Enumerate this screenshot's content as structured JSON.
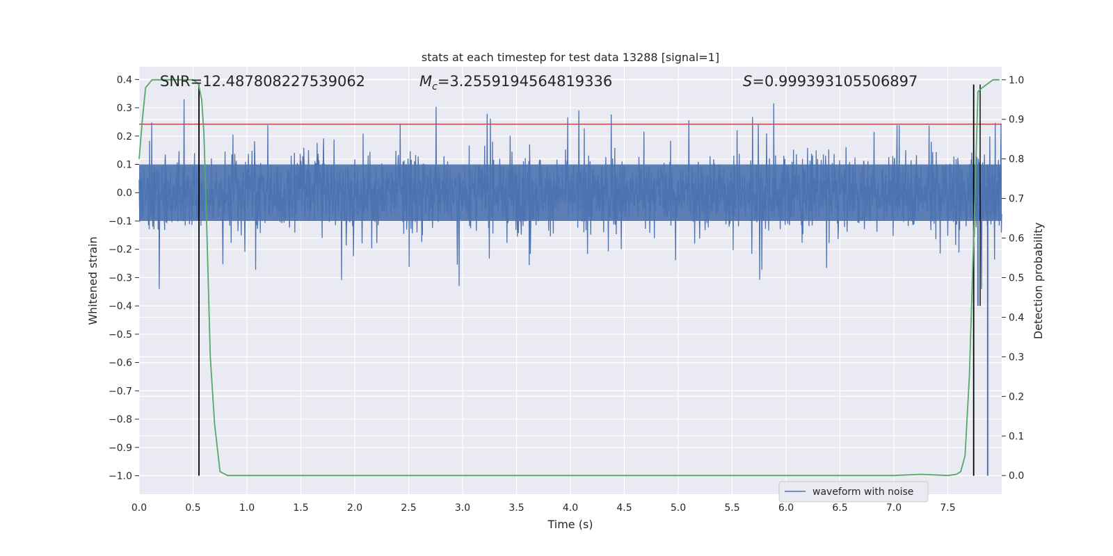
{
  "chart_data": {
    "type": "line",
    "title": "stats at each timestep for test data 13288 [signal=1]",
    "xlabel": "Time (s)",
    "ylabel": "Whitened strain",
    "y2label": "Detection probability",
    "xlim": [
      0.0,
      8.0
    ],
    "ylim": [
      -1.065,
      0.445
    ],
    "y2lim": [
      -0.047,
      1.033
    ],
    "xticks": [
      0.0,
      0.5,
      1.0,
      1.5,
      2.0,
      2.5,
      3.0,
      3.5,
      4.0,
      4.5,
      5.0,
      5.5,
      6.0,
      6.5,
      7.0,
      7.5
    ],
    "yticks": [
      0.4,
      0.3,
      0.2,
      0.1,
      0.0,
      -0.1,
      -0.2,
      -0.3,
      -0.4,
      -0.5,
      -0.6,
      -0.7,
      -0.8,
      -0.9,
      -1.0
    ],
    "y2ticks": [
      1.0,
      0.9,
      0.8,
      0.7,
      0.6,
      0.5,
      0.4,
      0.3,
      0.2,
      0.1,
      0.0
    ],
    "grid": true,
    "legend_position": "lower-right",
    "annotations": {
      "snr": "SNR=12.487808227539062",
      "mc_symbol": "M",
      "mc_subscript": "c",
      "mc_value": "=3.2559194564819336",
      "s_symbol": "S",
      "s_value": "=0.999393105506897"
    },
    "series": [
      {
        "name": "waveform with noise",
        "axis": "left",
        "color": "#4c72b0",
        "kind": "noise",
        "t_range": [
          0.0,
          8.0
        ],
        "typical_range": [
          -0.18,
          0.17
        ],
        "peak_range": [
          -0.34,
          0.33
        ],
        "tail_spikes": [
          {
            "x": 7.78,
            "y": -0.4
          },
          {
            "x": 7.87,
            "y": -1.0
          }
        ]
      },
      {
        "axis": "right",
        "color": "#55a868",
        "x": [
          0.0,
          0.03,
          0.06,
          0.12,
          0.2,
          0.3,
          0.4,
          0.5,
          0.55,
          0.58,
          0.6,
          0.62,
          0.66,
          0.7,
          0.75,
          0.82,
          0.9,
          1.0,
          2.0,
          3.0,
          4.0,
          5.0,
          6.0,
          7.0,
          7.25,
          7.5,
          7.58,
          7.62,
          7.66,
          7.7,
          7.74,
          7.78,
          7.82,
          7.87,
          7.92,
          7.98
        ],
        "y": [
          0.8,
          0.9,
          0.98,
          1.0,
          1.0,
          1.0,
          1.0,
          1.0,
          0.99,
          0.95,
          0.87,
          0.7,
          0.3,
          0.13,
          0.01,
          0.0,
          0.0,
          0.0,
          0.0,
          0.0,
          0.0,
          0.0,
          0.0,
          0.0,
          0.003,
          0.0,
          0.003,
          0.01,
          0.05,
          0.25,
          0.6,
          0.97,
          0.98,
          0.99,
          1.0,
          1.0
        ]
      }
    ],
    "hlines": [
      {
        "axis": "left",
        "y": 0.242,
        "color": "#c44e52"
      }
    ],
    "vlines": [
      {
        "x": 0.555,
        "color": "#000000",
        "y_range": [
          -1.0,
          0.382
        ]
      },
      {
        "x": 7.74,
        "color": "#000000",
        "y_range": [
          -1.0,
          0.382
        ]
      }
    ]
  }
}
